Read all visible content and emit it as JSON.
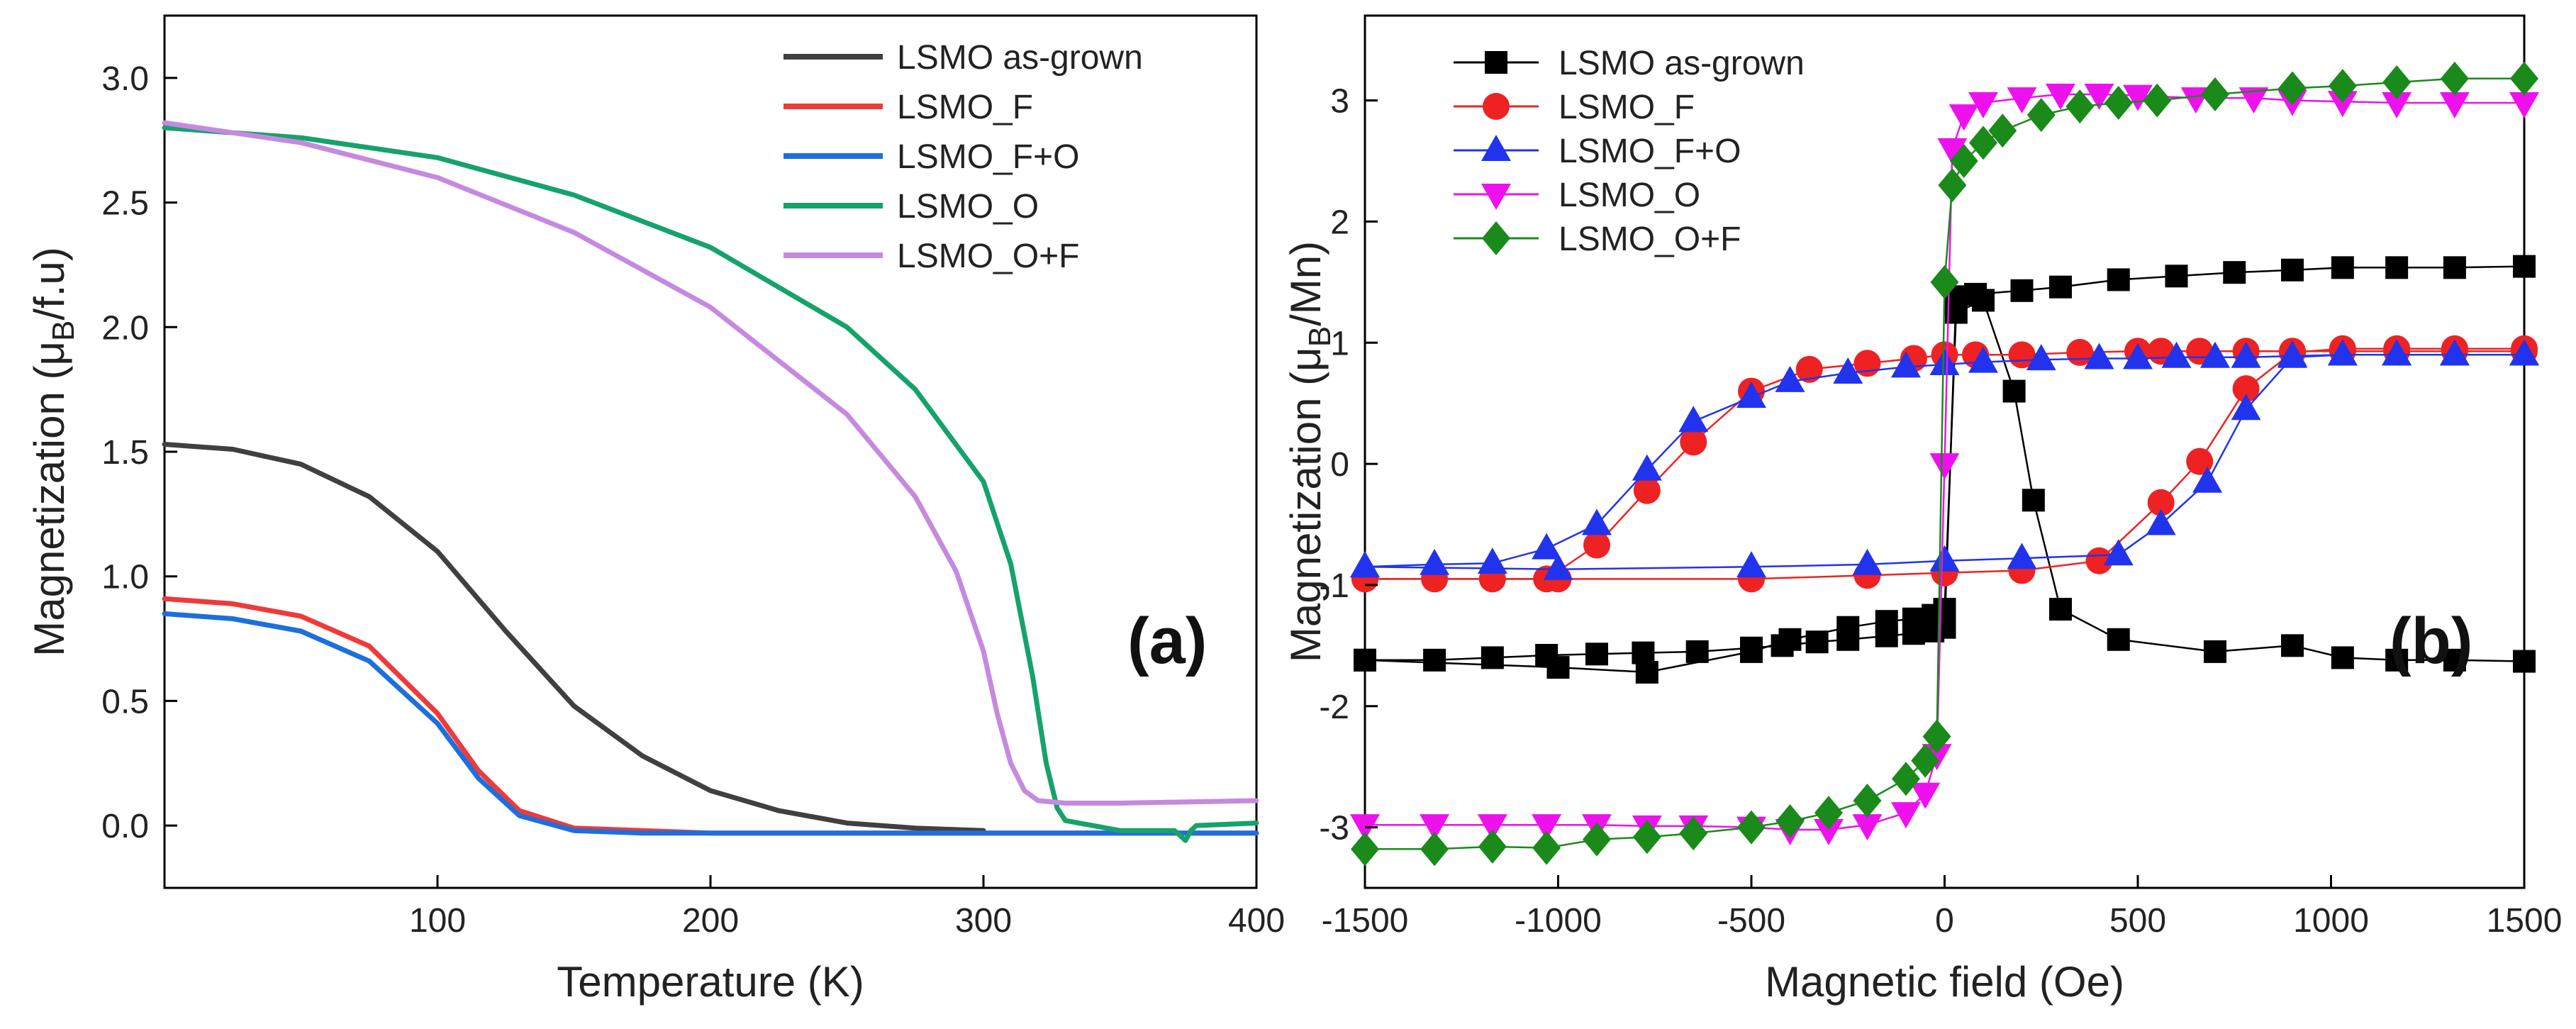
{
  "chart_data": [
    {
      "type": "line",
      "panel_label": "(a)",
      "xlabel": "Temperature (K)",
      "ylabel": {
        "main": "Magnetization (",
        "mu": "μ",
        "sub": "B",
        "unit": "/f.u)"
      },
      "xlim": [
        0,
        400
      ],
      "ylim": [
        -0.25,
        3.25
      ],
      "xticks": [
        100,
        200,
        300,
        400
      ],
      "yticks": [
        0.0,
        0.5,
        1.0,
        1.5,
        2.0,
        2.5,
        3.0
      ],
      "ytick_labels": [
        "0.0",
        "0.5",
        "1.0",
        "1.5",
        "2.0",
        "2.5",
        "3.0"
      ],
      "legend_position": "top-right",
      "series": [
        {
          "name": "LSMO as-grown",
          "color": "#404040",
          "x": [
            0,
            25,
            50,
            75,
            100,
            125,
            150,
            175,
            200,
            225,
            250,
            275,
            300
          ],
          "y": [
            1.53,
            1.51,
            1.45,
            1.32,
            1.1,
            0.78,
            0.48,
            0.28,
            0.14,
            0.06,
            0.01,
            -0.01,
            -0.02
          ]
        },
        {
          "name": "LSMO_F",
          "color": "#ee3a3a",
          "x": [
            0,
            25,
            50,
            75,
            100,
            115,
            130,
            150,
            175,
            200,
            250,
            300,
            350,
            400
          ],
          "y": [
            0.91,
            0.89,
            0.84,
            0.72,
            0.45,
            0.22,
            0.06,
            -0.01,
            -0.02,
            -0.03,
            -0.03,
            -0.03,
            -0.03,
            -0.03
          ]
        },
        {
          "name": "LSMO_F+O",
          "color": "#1e6fdc",
          "x": [
            0,
            25,
            50,
            75,
            100,
            115,
            130,
            150,
            175,
            200,
            250,
            300,
            350,
            400
          ],
          "y": [
            0.85,
            0.83,
            0.78,
            0.66,
            0.41,
            0.19,
            0.04,
            -0.02,
            -0.03,
            -0.03,
            -0.03,
            -0.03,
            -0.03,
            -0.03
          ]
        },
        {
          "name": "LSMO_O",
          "color": "#16a36b",
          "x": [
            0,
            50,
            100,
            150,
            200,
            250,
            275,
            300,
            310,
            318,
            323,
            327,
            330,
            340,
            350,
            370,
            374,
            376,
            378,
            400
          ],
          "y": [
            2.8,
            2.76,
            2.68,
            2.53,
            2.32,
            2.0,
            1.75,
            1.38,
            1.05,
            0.6,
            0.25,
            0.07,
            0.02,
            0.0,
            -0.02,
            -0.02,
            -0.06,
            -0.02,
            0.0,
            0.01
          ]
        },
        {
          "name": "LSMO_O+F",
          "color": "#c58ae0",
          "x": [
            0,
            50,
            100,
            150,
            200,
            250,
            275,
            290,
            300,
            305,
            310,
            315,
            320,
            330,
            350,
            400
          ],
          "y": [
            2.82,
            2.74,
            2.6,
            2.38,
            2.08,
            1.65,
            1.32,
            1.02,
            0.7,
            0.45,
            0.25,
            0.14,
            0.1,
            0.09,
            0.09,
            0.1
          ]
        }
      ]
    },
    {
      "type": "line",
      "panel_label": "(b)",
      "xlabel": "Magnetic field (Oe)",
      "ylabel": {
        "main": "Magnetization (",
        "mu": "μ",
        "sub": "B",
        "unit": "/Mn)"
      },
      "xlim": [
        -1500,
        1500
      ],
      "ylim": [
        -3.5,
        3.7
      ],
      "xticks": [
        -1500,
        -1000,
        -500,
        0,
        500,
        1000,
        1500
      ],
      "yticks": [
        -3,
        -2,
        -1,
        0,
        1,
        2,
        3
      ],
      "legend_position": "top-left",
      "series": [
        {
          "name": "LSMO as-grown",
          "color": "#000000",
          "marker": "square",
          "x": [
            -1500,
            -1320,
            -1170,
            -1030,
            -900,
            -780,
            -640,
            -500,
            -420,
            -330,
            -250,
            -150,
            -80,
            -30,
            0,
            30,
            80,
            200,
            300,
            450,
            600,
            750,
            900,
            1030,
            1170,
            1320,
            1500
          ],
          "y": [
            -1.62,
            -1.62,
            -1.6,
            -1.58,
            -1.57,
            -1.56,
            -1.55,
            -1.52,
            -1.5,
            -1.47,
            -1.45,
            -1.42,
            -1.4,
            -1.38,
            -1.35,
            1.38,
            1.4,
            1.43,
            1.46,
            1.52,
            1.55,
            1.58,
            1.6,
            1.62,
            1.62,
            1.62,
            1.63
          ],
          "x2": [
            -1500,
            -1000,
            -770,
            -500,
            -400,
            -250,
            -150,
            -80,
            -30,
            0,
            30,
            100,
            180,
            230,
            300,
            450,
            700,
            900,
            1030,
            1170,
            1320,
            1500
          ],
          "y2": [
            -1.62,
            -1.68,
            -1.72,
            -1.55,
            -1.45,
            -1.35,
            -1.3,
            -1.28,
            -1.25,
            -1.2,
            1.25,
            1.35,
            0.6,
            -0.3,
            -1.2,
            -1.45,
            -1.55,
            -1.5,
            -1.6,
            -1.62,
            -1.62,
            -1.63
          ]
        },
        {
          "name": "LSMO_F",
          "color": "#ee2222",
          "marker": "circle",
          "x": [
            -1500,
            -1320,
            -1170,
            -1030,
            -900,
            -770,
            -650,
            -500,
            -350,
            -200,
            -80,
            0,
            80,
            200,
            350,
            500,
            560,
            660,
            780,
            900,
            1030,
            1170,
            1320,
            1500
          ],
          "y": [
            -0.95,
            -0.95,
            -0.95,
            -0.95,
            -0.67,
            -0.22,
            0.18,
            0.6,
            0.78,
            0.83,
            0.87,
            0.9,
            0.9,
            0.9,
            0.92,
            0.93,
            0.93,
            0.93,
            0.93,
            0.93,
            0.93,
            0.93,
            0.93,
            0.93
          ],
          "x2": [
            -1500,
            -1000,
            -500,
            -200,
            0,
            200,
            400,
            560,
            660,
            780,
            900,
            1030,
            1170,
            1320,
            1500
          ],
          "y2": [
            -0.95,
            -0.95,
            -0.95,
            -0.92,
            -0.9,
            -0.88,
            -0.8,
            -0.32,
            0.02,
            0.62,
            0.92,
            0.95,
            0.95,
            0.95,
            0.95
          ]
        },
        {
          "name": "LSMO_F+O",
          "color": "#2233ee",
          "marker": "triangle-up",
          "x": [
            -1500,
            -1320,
            -1170,
            -1030,
            -900,
            -770,
            -650,
            -500,
            -400,
            -250,
            -100,
            0,
            100,
            250,
            400,
            500,
            600,
            700,
            780,
            900,
            1030,
            1170,
            1320,
            1500
          ],
          "y": [
            -0.85,
            -0.83,
            -0.82,
            -0.7,
            -0.5,
            -0.05,
            0.35,
            0.55,
            0.68,
            0.75,
            0.8,
            0.82,
            0.84,
            0.86,
            0.87,
            0.87,
            0.88,
            0.88,
            0.88,
            0.89,
            0.9,
            0.9,
            0.9,
            0.9
          ],
          "x2": [
            -1500,
            -1000,
            -500,
            -200,
            0,
            200,
            450,
            560,
            680,
            780,
            900,
            1030,
            1170,
            1320,
            1500
          ],
          "y2": [
            -0.85,
            -0.87,
            -0.85,
            -0.83,
            -0.8,
            -0.78,
            -0.75,
            -0.5,
            -0.15,
            0.45,
            0.88,
            0.9,
            0.9,
            0.9,
            0.9
          ]
        },
        {
          "name": "LSMO_O",
          "color": "#ee11ee",
          "marker": "triangle-down",
          "x": [
            -1500,
            -1320,
            -1170,
            -1030,
            -900,
            -770,
            -650,
            -500,
            -400,
            -300,
            -200,
            -100,
            -50,
            -20,
            0,
            20,
            50,
            100,
            200,
            300,
            400,
            500,
            650,
            800,
            900,
            1030,
            1170,
            1320,
            1500
          ],
          "y": [
            -2.98,
            -2.98,
            -2.98,
            -2.98,
            -2.98,
            -2.99,
            -2.99,
            -3.0,
            -3.02,
            -3.02,
            -2.98,
            -2.88,
            -2.72,
            -2.4,
            0.0,
            2.6,
            2.88,
            2.98,
            3.02,
            3.05,
            3.05,
            3.04,
            3.02,
            3.02,
            3.0,
            2.99,
            2.98,
            2.98,
            2.98
          ]
        },
        {
          "name": "LSMO_O+F",
          "color": "#1a8a1a",
          "marker": "diamond",
          "x": [
            -1500,
            -1320,
            -1170,
            -1030,
            -900,
            -770,
            -650,
            -500,
            -400,
            -300,
            -200,
            -100,
            -50,
            -20,
            0,
            20,
            50,
            100,
            150,
            250,
            350,
            450,
            550,
            700,
            900,
            1030,
            1170,
            1320,
            1500
          ],
          "y": [
            -3.18,
            -3.18,
            -3.16,
            -3.17,
            -3.1,
            -3.08,
            -3.05,
            -3.0,
            -2.95,
            -2.88,
            -2.78,
            -2.6,
            -2.45,
            -2.25,
            1.5,
            2.3,
            2.5,
            2.65,
            2.75,
            2.88,
            2.95,
            2.98,
            3.0,
            3.05,
            3.1,
            3.12,
            3.15,
            3.18,
            3.18
          ]
        }
      ]
    }
  ]
}
